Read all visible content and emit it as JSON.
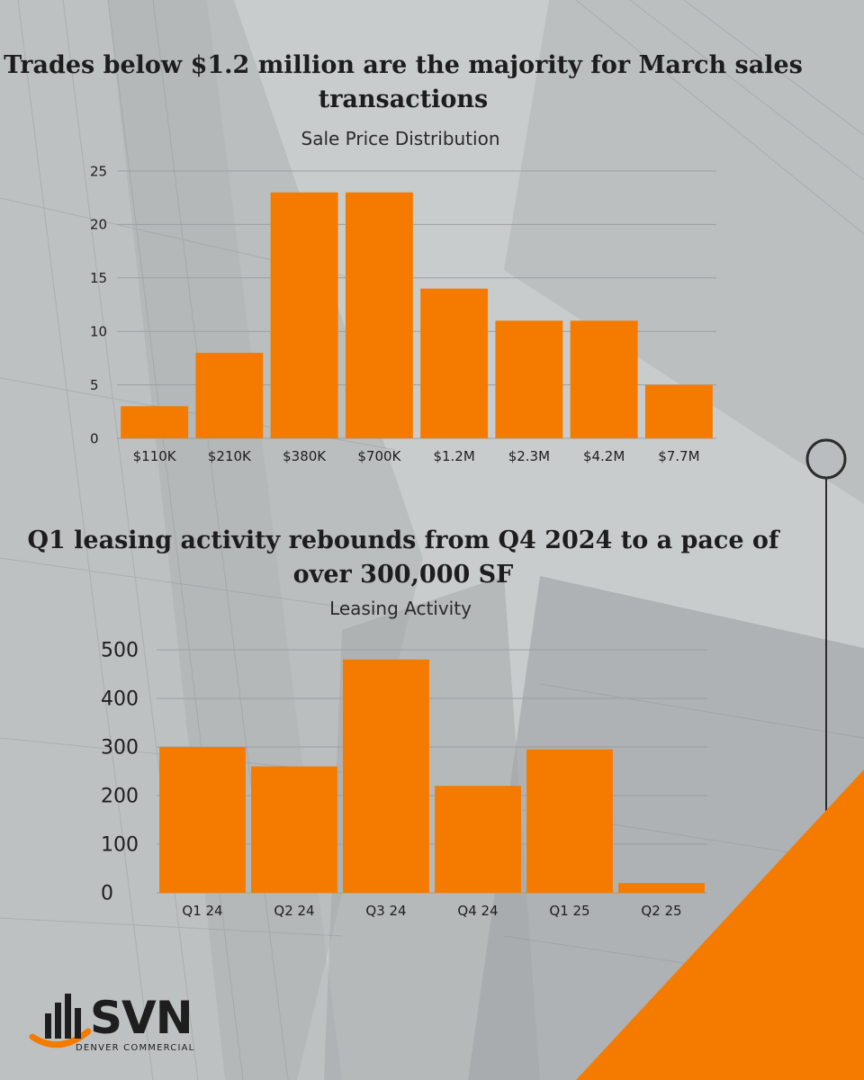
{
  "headlines": {
    "sales": "Trades below $1.2 million are the majority for March sales transactions",
    "leasing": "Q1 leasing activity rebounds from Q4 2024 to a pace of over 300,000 SF"
  },
  "brand": {
    "name": "SVN",
    "subtitle": "DENVER COMMERCIAL",
    "accent_color": "#f47b00",
    "text_color": "#1e1e1e",
    "background_color": "#c9cccd"
  },
  "chart_data": [
    {
      "type": "bar",
      "title": "Sale Price Distribution",
      "xlabel": "",
      "ylabel": "",
      "categories": [
        "$110K",
        "$210K",
        "$380K",
        "$700K",
        "$1.2M",
        "$2.3M",
        "$4.2M",
        "$7.7M"
      ],
      "values": [
        3,
        8,
        23,
        23,
        14,
        11,
        11,
        5
      ],
      "ylim": [
        0,
        25
      ],
      "yticks": [
        0,
        5,
        10,
        15,
        20,
        25
      ],
      "grid": true,
      "legend": "none",
      "color": "#f47b00"
    },
    {
      "type": "bar",
      "title": "Leasing Activity",
      "xlabel": "",
      "ylabel": "",
      "categories": [
        "Q1 24",
        "Q2 24",
        "Q3 24",
        "Q4 24",
        "Q1 25",
        "Q2 25"
      ],
      "values": [
        300,
        260,
        480,
        220,
        295,
        20
      ],
      "ylim": [
        0,
        500
      ],
      "yticks": [
        0,
        100,
        200,
        300,
        400,
        500
      ],
      "grid": true,
      "legend": "none",
      "color": "#f47b00"
    }
  ]
}
